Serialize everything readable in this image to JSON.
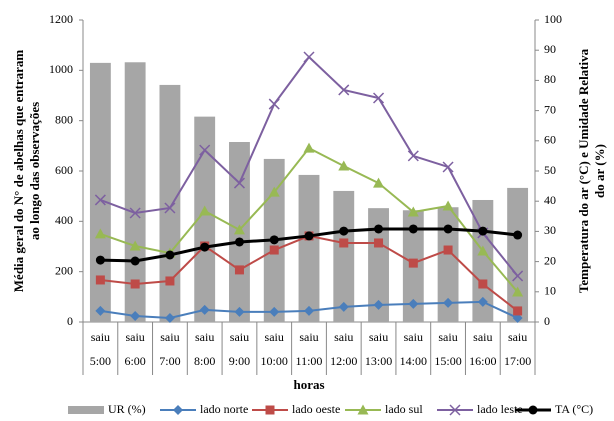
{
  "chart_data": {
    "type": "combo",
    "categories": [
      [
        "saiu",
        "5:00"
      ],
      [
        "saiu",
        "6:00"
      ],
      [
        "saiu",
        "7:00"
      ],
      [
        "saiu",
        "8:00"
      ],
      [
        "saiu",
        "9:00"
      ],
      [
        "saiu",
        "10:00"
      ],
      [
        "saiu",
        "11:00"
      ],
      [
        "saiu",
        "12:00"
      ],
      [
        "saiu",
        "13:00"
      ],
      [
        "saiu",
        "14:00"
      ],
      [
        "saiu",
        "15:00"
      ],
      [
        "saiu",
        "16:00"
      ],
      [
        "saiu",
        "17:00"
      ]
    ],
    "x_label": "horas",
    "y_label": [
      "Média geral do N° de abelhas  que  entraram",
      "ao longo das  observações"
    ],
    "y2_label": [
      "Temperatura do ar (°C) e Umidade Relativa",
      "do ar (%)"
    ],
    "ylim": [
      0,
      1200
    ],
    "yticks": [
      0,
      200,
      400,
      600,
      800,
      1000,
      1200
    ],
    "y2lim": [
      0,
      100
    ],
    "y2ticks": [
      0,
      10,
      20,
      30,
      40,
      50,
      60,
      70,
      80,
      90,
      100
    ],
    "series": [
      {
        "name": "UR (%)",
        "type": "bar",
        "axis": "y2",
        "color": "#a6a6a6",
        "values": [
          85.8,
          86,
          78.5,
          68,
          59.6,
          54,
          48.7,
          43.4,
          37.7,
          37,
          38,
          40.4,
          44.4
        ]
      },
      {
        "name": "lado norte",
        "type": "line",
        "marker": "diamond",
        "color": "#4a7ebb",
        "values": [
          44,
          24,
          16,
          48,
          40,
          40,
          44,
          60,
          68,
          72,
          76,
          80,
          16
        ]
      },
      {
        "name": "lado oeste",
        "type": "line",
        "marker": "square",
        "color": "#be4b48",
        "values": [
          167,
          151,
          163,
          302,
          207,
          286,
          342,
          314,
          314,
          234,
          286,
          151,
          44
        ]
      },
      {
        "name": "lado sul",
        "type": "line",
        "marker": "triangle",
        "color": "#98b954",
        "values": [
          350,
          302,
          274,
          441,
          366,
          516,
          691,
          620,
          552,
          437,
          461,
          282,
          119
        ]
      },
      {
        "name": "lado leste",
        "type": "line",
        "marker": "x",
        "color": "#7d60a0",
        "values": [
          485,
          433,
          453,
          683,
          552,
          866,
          1053,
          922,
          890,
          660,
          616,
          354,
          183
        ]
      },
      {
        "name": "TA (°C)",
        "type": "line",
        "axis": "y2",
        "marker": "circle",
        "color": "#000000",
        "values": [
          20.5,
          20.2,
          22.2,
          24.8,
          26.5,
          27.2,
          28.5,
          30.1,
          30.8,
          30.8,
          30.8,
          30.1,
          28.8
        ]
      }
    ]
  }
}
